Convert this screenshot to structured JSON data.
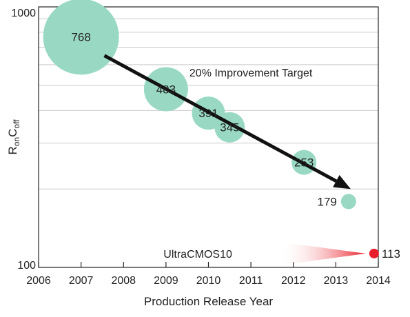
{
  "chart_data": {
    "type": "scatter",
    "xlabel": "Production Release Year",
    "ylabel_main": "R",
    "ylabel_sub1": "on",
    "ylabel_mid": "C",
    "ylabel_sub2": "off",
    "xlim": [
      2006,
      2014
    ],
    "ylim": [
      100,
      1000
    ],
    "yscale": "log",
    "grid": "horizontal",
    "x_ticks": [
      2006,
      2007,
      2008,
      2009,
      2010,
      2011,
      2012,
      2013,
      2014
    ],
    "y_tick_labels": [
      {
        "value": 1000,
        "label": "1000"
      },
      {
        "value": 100,
        "label": "100"
      }
    ],
    "points": [
      {
        "x": 2007.0,
        "y": 768,
        "label": "768",
        "label_position": "inside",
        "color": "#99d9c4"
      },
      {
        "x": 2009.0,
        "y": 483,
        "label": "483",
        "label_position": "inside",
        "color": "#99d9c4"
      },
      {
        "x": 2010.0,
        "y": 391,
        "label": "391",
        "label_position": "inside",
        "color": "#99d9c4"
      },
      {
        "x": 2010.5,
        "y": 345,
        "label": "345",
        "label_position": "inside",
        "color": "#99d9c4"
      },
      {
        "x": 2012.25,
        "y": 253,
        "label": "253",
        "label_position": "inside",
        "color": "#99d9c4"
      },
      {
        "x": 2013.3,
        "y": 179,
        "label": "179",
        "label_position": "left",
        "color": "#99d9c4"
      },
      {
        "x": 2013.9,
        "y": 113,
        "label": "113",
        "label_position": "right",
        "color": "#e8202a"
      }
    ],
    "trend_arrow": {
      "from": [
        2007.55,
        650
      ],
      "to": [
        2013.35,
        200
      ],
      "color": "#111111"
    },
    "annotations": [
      {
        "text": "20% Improvement Target",
        "x": 2011.0,
        "y": 560
      },
      {
        "text": "UltraCMOS10",
        "x": 2009.75,
        "y": 113,
        "arrow_color": "#e8202a"
      }
    ]
  }
}
